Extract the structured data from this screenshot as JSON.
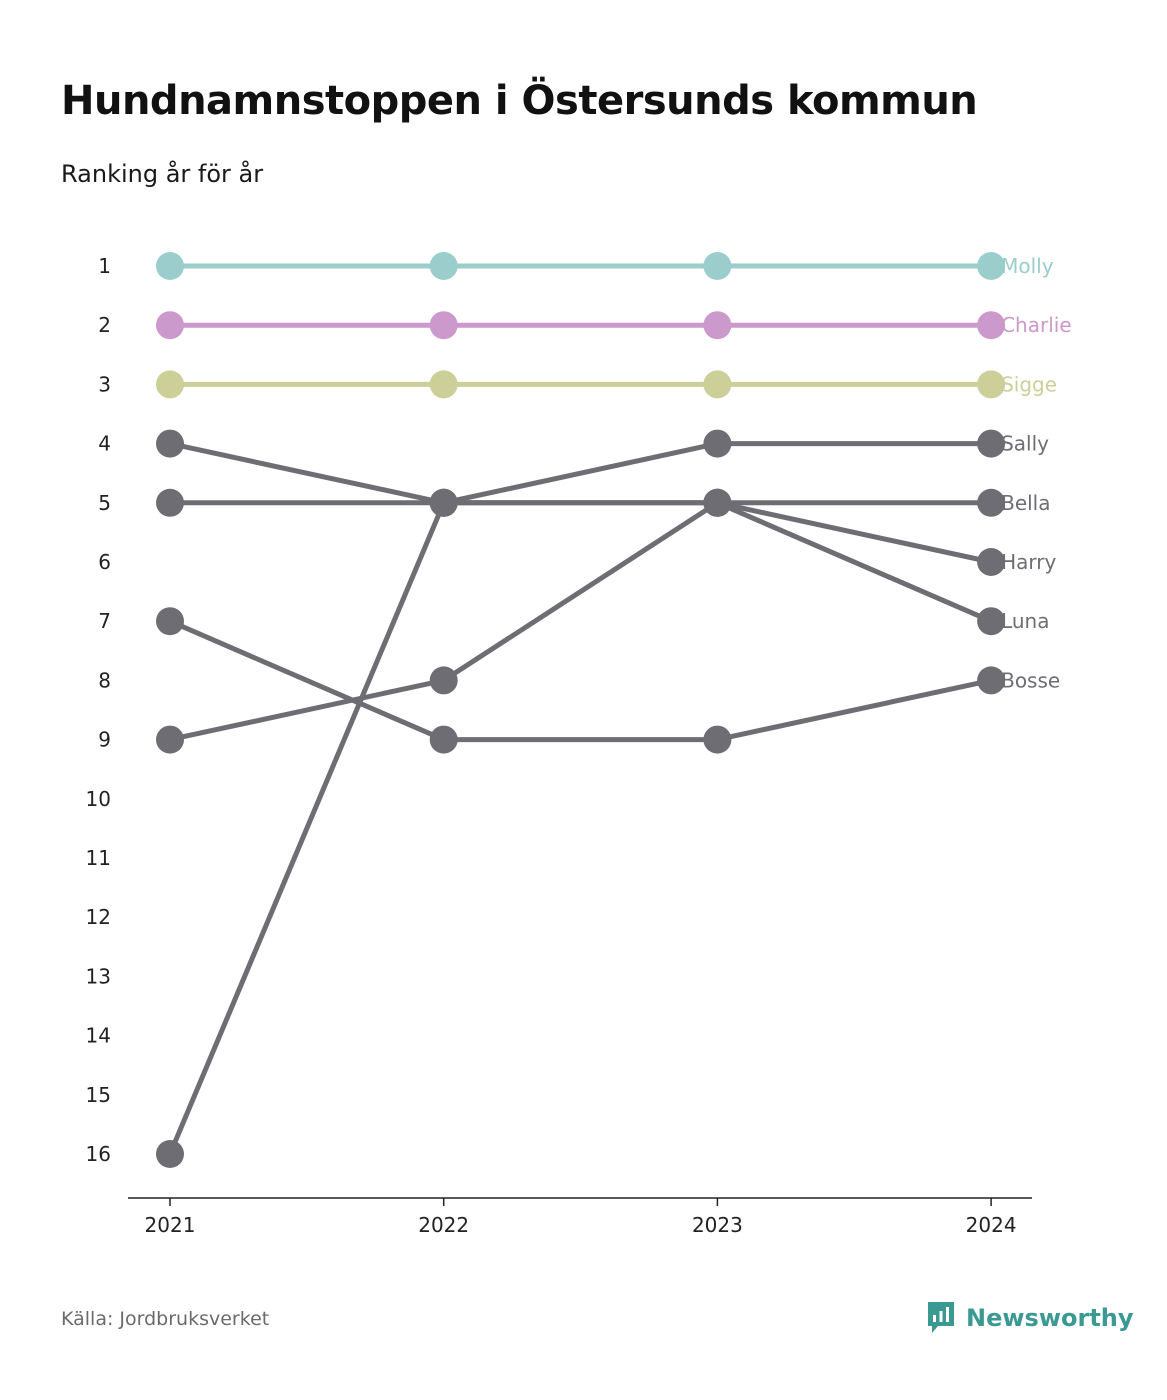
{
  "title": "Hundnamnstoppen i Östersunds kommun",
  "subtitle": "Ranking år för år",
  "source": "Källa: Jordbruksverket",
  "brand": {
    "name": "Newsworthy",
    "icon": "newsworthy-logo-icon",
    "color": "#3a9a93"
  },
  "chart_data": {
    "type": "line",
    "subtype": "bump",
    "x": [
      "2021",
      "2022",
      "2023",
      "2024"
    ],
    "y_ticks": [
      1,
      2,
      3,
      4,
      5,
      6,
      7,
      8,
      9,
      10,
      11,
      12,
      13,
      14,
      15,
      16
    ],
    "ylim": [
      16,
      1
    ],
    "y_inverted": true,
    "grid": false,
    "legend": "end-labels",
    "series": [
      {
        "name": "Molly",
        "values": [
          1,
          1,
          1,
          1
        ],
        "color": "#9acdcc"
      },
      {
        "name": "Charlie",
        "values": [
          2,
          2,
          2,
          2
        ],
        "color": "#cc99cc"
      },
      {
        "name": "Sigge",
        "values": [
          3,
          3,
          3,
          3
        ],
        "color": "#cdcf99"
      },
      {
        "name": "Sally",
        "values": [
          16,
          5,
          4,
          4
        ],
        "color": "#6e6d73"
      },
      {
        "name": "Bella",
        "values": [
          5,
          5,
          5,
          5
        ],
        "color": "#6e6d73"
      },
      {
        "name": "Harry",
        "values": [
          9,
          8,
          5,
          6
        ],
        "color": "#6e6d73"
      },
      {
        "name": "Luna",
        "values": [
          4,
          5,
          5,
          7
        ],
        "color": "#6e6d73"
      },
      {
        "name": "Bosse",
        "values": [
          7,
          9,
          9,
          8
        ],
        "color": "#6e6d73"
      }
    ]
  }
}
